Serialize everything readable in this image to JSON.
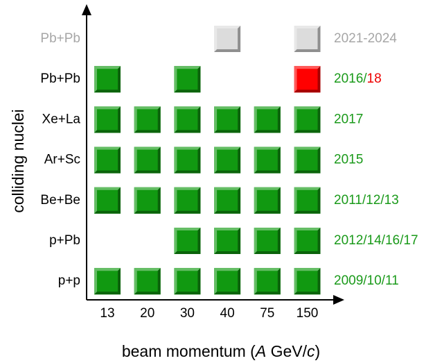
{
  "y_axis_label": "colliding nuclei",
  "x_axis_label": [
    {
      "text": "beam momentum ("
    },
    {
      "text": "A",
      "italic": true
    },
    {
      "text": " GeV/"
    },
    {
      "text": "c",
      "italic": true
    },
    {
      "text": ")"
    }
  ],
  "columns": [
    "13",
    "20",
    "30",
    "40",
    "75",
    "150"
  ],
  "rows": [
    {
      "label": "Pb+Pb",
      "label_color": "#a6a6a6",
      "years": [
        {
          "text": "2021-2024",
          "color": "#a6a6a6"
        }
      ],
      "cells": [
        null,
        null,
        null,
        "#dcdcdc",
        null,
        "#dcdcdc"
      ]
    },
    {
      "label": "Pb+Pb",
      "label_color": "#000000",
      "years": [
        {
          "text": "2016/",
          "color": "#1a9a1a"
        },
        {
          "text": "18",
          "color": "#ee0000"
        }
      ],
      "cells": [
        "#119911",
        null,
        "#119911",
        null,
        null,
        "#ff0000"
      ]
    },
    {
      "label": "Xe+La",
      "label_color": "#000000",
      "years": [
        {
          "text": "2017",
          "color": "#1a9a1a"
        }
      ],
      "cells": [
        "#119911",
        "#119911",
        "#119911",
        "#119911",
        "#119911",
        "#119911"
      ]
    },
    {
      "label": "Ar+Sc",
      "label_color": "#000000",
      "years": [
        {
          "text": "2015",
          "color": "#1a9a1a"
        }
      ],
      "cells": [
        "#119911",
        "#119911",
        "#119911",
        "#119911",
        "#119911",
        "#119911"
      ]
    },
    {
      "label": "Be+Be",
      "label_color": "#000000",
      "years": [
        {
          "text": "2011/12/13",
          "color": "#1a9a1a"
        }
      ],
      "cells": [
        "#119911",
        "#119911",
        "#119911",
        "#119911",
        "#119911",
        "#119911"
      ]
    },
    {
      "label": "p+Pb",
      "label_color": "#000000",
      "years": [
        {
          "text": "2012/14/16/17",
          "color": "#1a9a1a"
        }
      ],
      "cells": [
        null,
        null,
        "#119911",
        "#119911",
        "#119911",
        "#119911"
      ]
    },
    {
      "label": "p+p",
      "label_color": "#000000",
      "years": [
        {
          "text": "2009/10/11",
          "color": "#1a9a1a"
        }
      ],
      "cells": [
        "#119911",
        "#119911",
        "#119911",
        "#119911",
        "#119911",
        "#119911"
      ]
    }
  ]
}
